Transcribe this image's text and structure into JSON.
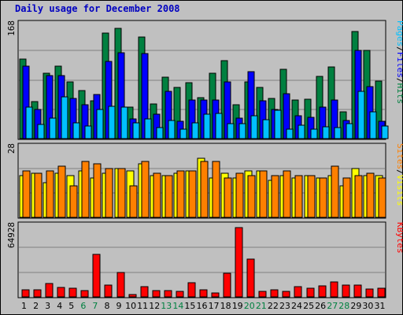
{
  "title": "Daily usage for December 2008",
  "chart_data": [
    {
      "type": "bar",
      "panel": "hits-files-pages",
      "ymax_label": "168",
      "ylim": [
        0,
        168
      ],
      "legend": [
        "Pages",
        "/",
        "Files",
        "/",
        "Hits"
      ],
      "legend_colors": [
        "#00c0ff",
        "#000000",
        "#0000ff",
        "#000000",
        "#008040"
      ],
      "series": [
        {
          "name": "Hits",
          "color": "#008040",
          "values": [
            119,
            55,
            97,
            108,
            85,
            72,
            56,
            158,
            165,
            47,
            152,
            52,
            92,
            76,
            83,
            61,
            98,
            116,
            51,
            85,
            76,
            60,
            103,
            57,
            59,
            93,
            107,
            40,
            160,
            132,
            86
          ]
        },
        {
          "name": "Files",
          "color": "#0000ff",
          "values": [
            108,
            43,
            94,
            94,
            60,
            51,
            66,
            115,
            128,
            29,
            127,
            36,
            70,
            26,
            57,
            57,
            58,
            84,
            30,
            100,
            56,
            44,
            67,
            34,
            32,
            47,
            58,
            27,
            131,
            78,
            26
          ]
        },
        {
          "name": "Pages",
          "color": "#00c0ff",
          "values": [
            47,
            21,
            31,
            62,
            24,
            19,
            43,
            48,
            47,
            24,
            29,
            16,
            27,
            14,
            24,
            37,
            38,
            22,
            22,
            34,
            28,
            42,
            14,
            20,
            14,
            18,
            17,
            22,
            71,
            40,
            19
          ]
        }
      ]
    },
    {
      "type": "bar",
      "panel": "visits-sites",
      "ymax_label": "28",
      "ylim": [
        0,
        28
      ],
      "legend": [
        "Sites",
        "/",
        "Visits"
      ],
      "legend_colors": [
        "#ff8000",
        "#000000",
        "#ffff00"
      ],
      "series": [
        {
          "name": "Visits",
          "color": "#ffff00",
          "values": [
            17,
            18,
            14,
            18,
            17,
            19,
            16,
            18,
            20,
            19,
            22,
            17,
            17,
            18,
            19,
            24,
            16,
            18,
            16,
            19,
            19,
            15,
            17,
            16,
            17,
            16,
            17,
            13,
            20,
            17,
            17
          ]
        },
        {
          "name": "Sites",
          "color": "#ff8000",
          "values": [
            19,
            18,
            19,
            21,
            13,
            23,
            22,
            20,
            20,
            13,
            23,
            18,
            17,
            19,
            19,
            23,
            23,
            16,
            18,
            17,
            19,
            17,
            19,
            17,
            17,
            16,
            21,
            16,
            17,
            18,
            16
          ]
        }
      ]
    },
    {
      "type": "bar",
      "panel": "kbytes",
      "ymax_label": "64928",
      "ylim": [
        0,
        64928
      ],
      "legend": [
        "KBytes"
      ],
      "legend_colors": [
        "#ff0000"
      ],
      "series": [
        {
          "name": "KBytes",
          "color": "#ff0000",
          "values": [
            6700,
            6700,
            12900,
            9100,
            7800,
            6000,
            40000,
            11200,
            22800,
            2300,
            9900,
            5700,
            5800,
            5400,
            13400,
            6900,
            3700,
            21800,
            64928,
            35400,
            5500,
            6700,
            4800,
            9600,
            8400,
            10200,
            14200,
            10700,
            11300,
            7600,
            8400
          ]
        }
      ]
    }
  ],
  "x_ticks": [
    "1",
    "2",
    "3",
    "4",
    "5",
    "6",
    "7",
    "8",
    "9",
    "10",
    "11",
    "12",
    "13",
    "14",
    "15",
    "16",
    "17",
    "18",
    "19",
    "20",
    "21",
    "22",
    "23",
    "24",
    "25",
    "26",
    "27",
    "28",
    "29",
    "30",
    "31"
  ],
  "weekend_days": [
    6,
    7,
    13,
    14,
    20,
    21,
    27,
    28
  ],
  "colors": {
    "weekday_tick": "#000000",
    "weekend_tick": "#008040",
    "grid": "#808080"
  }
}
